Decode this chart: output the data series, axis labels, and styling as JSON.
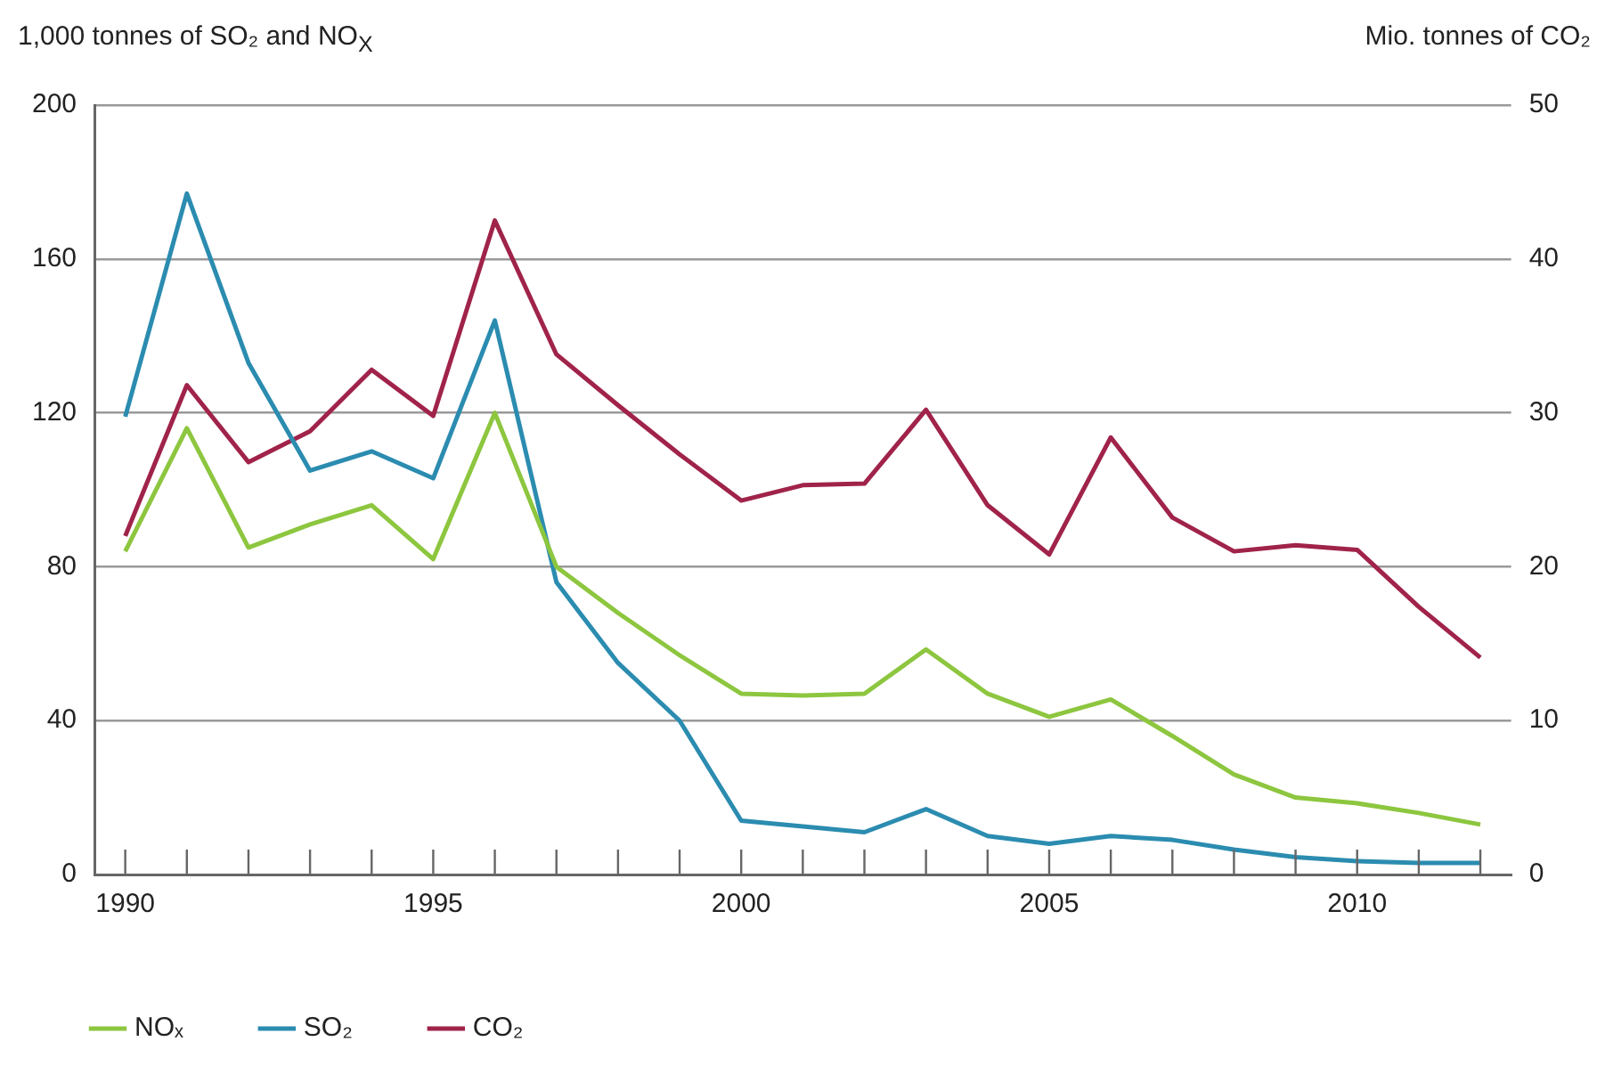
{
  "chart_data": {
    "type": "line",
    "ylabel": "1,000 tonnes of SO₂ and NO$_{X}$",
    "y2label": "Mio. tonnes of CO₂",
    "x": [
      1990,
      1991,
      1992,
      1993,
      1994,
      1995,
      1996,
      1997,
      1998,
      1999,
      2000,
      2001,
      2002,
      2003,
      2004,
      2005,
      2006,
      2007,
      2008,
      2009,
      2010,
      2011,
      2012
    ],
    "series": [
      {
        "name": "NOₓ",
        "color": "#8dc63f",
        "values": [
          84,
          116,
          85,
          91,
          96,
          82,
          120,
          80,
          68,
          57,
          47,
          46.5,
          47,
          58.5,
          47,
          41,
          45.5,
          36,
          26,
          20,
          18.5,
          16,
          13
        ]
      },
      {
        "name": "SO₂",
        "color": "#2b8cb0",
        "values": [
          119,
          177,
          133,
          105,
          110,
          103,
          144,
          76,
          55,
          40,
          14,
          12.5,
          11,
          17,
          10,
          8,
          10,
          9,
          6.5,
          4.5,
          3.5,
          3,
          3
        ]
      },
      {
        "name": "CO₂",
        "color": "#a0234a",
        "axis": "y2",
        "values": [
          22,
          31.8,
          26.8,
          28.8,
          32.8,
          29.8,
          42.5,
          33.8,
          30.5,
          27.3,
          24.3,
          25.3,
          25.4,
          30.2,
          24,
          20.8,
          28.4,
          23.2,
          21,
          21.4,
          21.1,
          17.4,
          14.1
        ]
      }
    ],
    "xlim": [
      1989.5,
      2012.5
    ],
    "xticks": [
      1990,
      {
        "value": 1991,
        "label": null
      },
      {
        "value": 1992,
        "label": null
      },
      {
        "value": 1993,
        "label": null
      },
      {
        "value": 1994,
        "label": null
      },
      1995,
      {
        "value": 1996,
        "label": null
      },
      {
        "value": 1997,
        "label": null
      },
      {
        "value": 1998,
        "label": null
      },
      {
        "value": 1999,
        "label": null
      },
      2000,
      {
        "value": 2001,
        "label": null
      },
      {
        "value": 2002,
        "label": null
      },
      {
        "value": 2003,
        "label": null
      },
      {
        "value": 2004,
        "label": null
      },
      2005,
      {
        "value": 2006,
        "label": null
      },
      {
        "value": 2007,
        "label": null
      },
      {
        "value": 2008,
        "label": null
      },
      {
        "value": 2009,
        "label": null
      },
      2010,
      {
        "value": 2011,
        "label": null
      },
      {
        "value": 2012,
        "label": null
      }
    ],
    "ylim": [
      0,
      200
    ],
    "yticks": [
      0,
      40,
      80,
      120,
      160,
      200
    ],
    "y2lim": [
      0,
      50
    ],
    "y2ticks": [
      0,
      10,
      20,
      30,
      40,
      50
    ],
    "grid": "y",
    "legend": "bottom left",
    "marker": "none",
    "line_style": "solid"
  }
}
